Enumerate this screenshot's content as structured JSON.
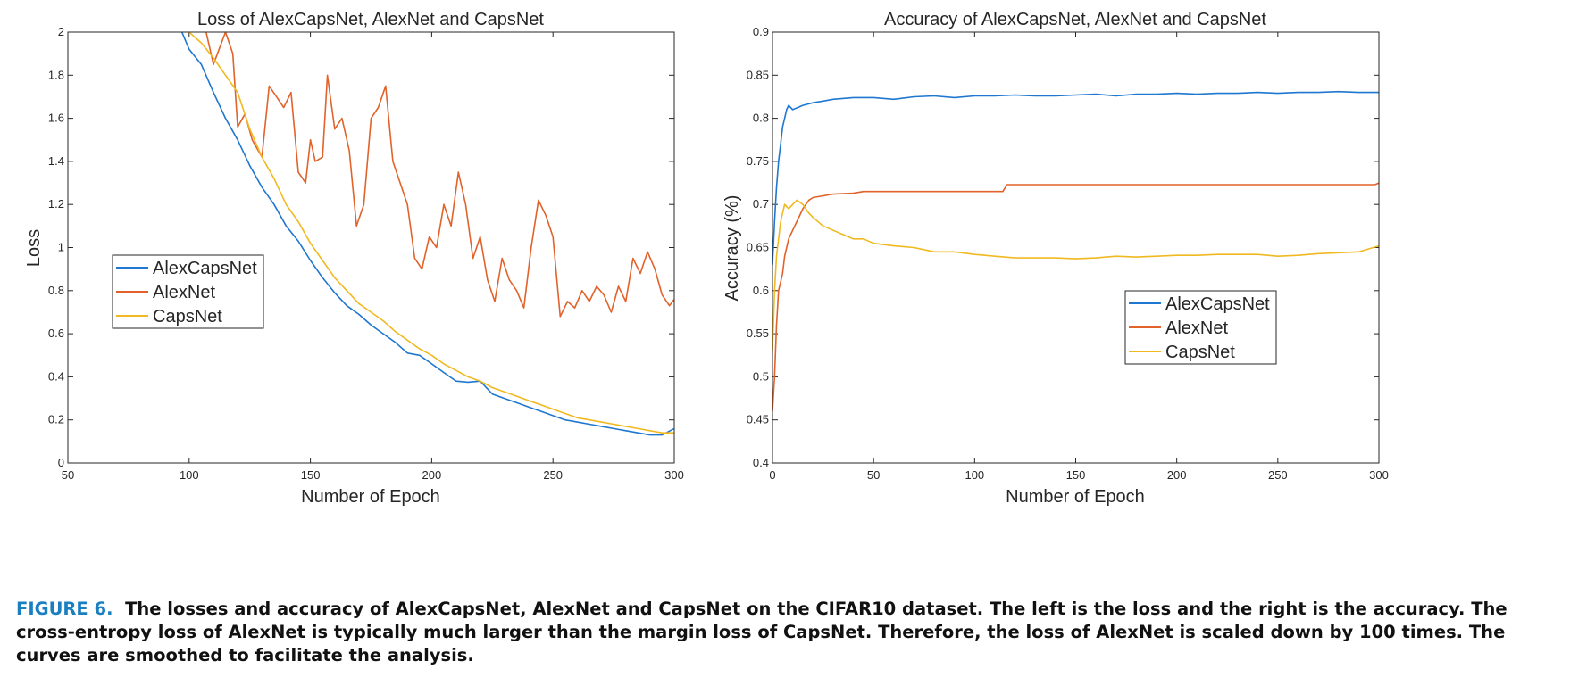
{
  "colors": {
    "alexcapsnet": "#1f77d0",
    "alexnet": "#e1622a",
    "capsnet": "#f0b921",
    "axis": "#262626",
    "caption_label": "#1a7fc1"
  },
  "chart_data": [
    {
      "type": "line",
      "title": "Loss of AlexCapsNet, AlexNet and CapsNet",
      "xlabel": "Number of Epoch",
      "ylabel": "Loss",
      "xlim": [
        50,
        300
      ],
      "ylim": [
        0,
        2
      ],
      "xticks": [
        "50",
        "100",
        "150",
        "200",
        "250",
        "300"
      ],
      "yticks": [
        "0",
        "0.2",
        "0.4",
        "0.6",
        "0.8",
        "1",
        "1.2",
        "1.4",
        "1.6",
        "1.8",
        "2"
      ],
      "grid": false,
      "legend_position": "center-left",
      "series": [
        {
          "name": "AlexCapsNet",
          "color": "#1f77d0",
          "x": [
            97,
            100,
            105,
            110,
            115,
            120,
            125,
            130,
            135,
            140,
            145,
            150,
            155,
            160,
            165,
            170,
            175,
            180,
            185,
            190,
            195,
            200,
            205,
            210,
            215,
            220,
            225,
            230,
            235,
            240,
            245,
            250,
            255,
            260,
            265,
            270,
            275,
            280,
            285,
            290,
            295,
            300
          ],
          "y": [
            2.0,
            1.92,
            1.85,
            1.72,
            1.6,
            1.5,
            1.38,
            1.28,
            1.2,
            1.1,
            1.03,
            0.94,
            0.86,
            0.79,
            0.73,
            0.69,
            0.64,
            0.6,
            0.56,
            0.51,
            0.5,
            0.46,
            0.42,
            0.38,
            0.375,
            0.38,
            0.32,
            0.3,
            0.28,
            0.26,
            0.24,
            0.22,
            0.2,
            0.19,
            0.18,
            0.17,
            0.16,
            0.15,
            0.14,
            0.13,
            0.13,
            0.16
          ]
        },
        {
          "name": "AlexNet",
          "color": "#e1622a",
          "x": [
            107,
            110,
            115,
            118,
            120,
            123,
            126,
            130,
            133,
            136,
            139,
            142,
            145,
            148,
            150,
            152,
            155,
            157,
            160,
            163,
            166,
            169,
            172,
            175,
            178,
            181,
            184,
            187,
            190,
            193,
            196,
            199,
            202,
            205,
            208,
            211,
            214,
            217,
            220,
            223,
            226,
            229,
            232,
            235,
            238,
            241,
            244,
            247,
            250,
            253,
            256,
            259,
            262,
            265,
            268,
            271,
            274,
            277,
            280,
            283,
            286,
            289,
            292,
            295,
            298,
            300
          ],
          "y": [
            2.0,
            1.85,
            2.0,
            1.9,
            1.56,
            1.62,
            1.5,
            1.42,
            1.75,
            1.7,
            1.65,
            1.72,
            1.35,
            1.3,
            1.5,
            1.4,
            1.42,
            1.8,
            1.55,
            1.6,
            1.45,
            1.1,
            1.2,
            1.6,
            1.65,
            1.75,
            1.4,
            1.3,
            1.2,
            0.95,
            0.9,
            1.05,
            1.0,
            1.2,
            1.1,
            1.35,
            1.2,
            0.95,
            1.05,
            0.85,
            0.75,
            0.95,
            0.85,
            0.8,
            0.72,
            1.0,
            1.22,
            1.15,
            1.05,
            0.68,
            0.75,
            0.72,
            0.8,
            0.75,
            0.82,
            0.78,
            0.7,
            0.82,
            0.75,
            0.95,
            0.88,
            0.98,
            0.9,
            0.78,
            0.73,
            0.76
          ]
        },
        {
          "name": "CapsNet",
          "color": "#f0b921",
          "x": [
            100,
            105,
            110,
            115,
            120,
            125,
            130,
            135,
            140,
            145,
            150,
            155,
            160,
            165,
            170,
            175,
            180,
            185,
            190,
            195,
            200,
            205,
            210,
            215,
            220,
            225,
            230,
            235,
            240,
            245,
            250,
            255,
            260,
            265,
            270,
            275,
            280,
            285,
            290,
            295,
            300
          ],
          "y": [
            2.0,
            1.95,
            1.88,
            1.8,
            1.72,
            1.55,
            1.42,
            1.32,
            1.2,
            1.12,
            1.02,
            0.94,
            0.86,
            0.8,
            0.74,
            0.7,
            0.66,
            0.61,
            0.57,
            0.53,
            0.5,
            0.46,
            0.43,
            0.4,
            0.38,
            0.35,
            0.33,
            0.31,
            0.29,
            0.27,
            0.25,
            0.23,
            0.21,
            0.2,
            0.19,
            0.18,
            0.17,
            0.16,
            0.15,
            0.14,
            0.14
          ]
        }
      ]
    },
    {
      "type": "line",
      "title": "Accuracy of AlexCapsNet, AlexNet and CapsNet",
      "xlabel": "Number of Epoch",
      "ylabel": "Accuracy (%)",
      "xlim": [
        0,
        300
      ],
      "ylim": [
        0.4,
        0.9
      ],
      "xticks": [
        "0",
        "50",
        "100",
        "150",
        "200",
        "250",
        "300"
      ],
      "yticks": [
        "0.4",
        "0.45",
        "0.5",
        "0.55",
        "0.6",
        "0.65",
        "0.7",
        "0.75",
        "0.8",
        "0.85",
        "0.9"
      ],
      "grid": false,
      "legend_position": "center-right",
      "series": [
        {
          "name": "AlexCapsNet",
          "color": "#1f77d0",
          "x": [
            0,
            1,
            2,
            3,
            4,
            5,
            6,
            7,
            8,
            10,
            12,
            15,
            20,
            25,
            30,
            40,
            50,
            60,
            70,
            80,
            90,
            100,
            110,
            120,
            130,
            140,
            150,
            160,
            170,
            180,
            190,
            200,
            210,
            220,
            230,
            240,
            250,
            260,
            270,
            280,
            290,
            300
          ],
          "y": [
            0.63,
            0.68,
            0.72,
            0.75,
            0.77,
            0.79,
            0.8,
            0.81,
            0.815,
            0.81,
            0.812,
            0.815,
            0.818,
            0.82,
            0.822,
            0.824,
            0.824,
            0.822,
            0.825,
            0.826,
            0.824,
            0.826,
            0.826,
            0.827,
            0.826,
            0.826,
            0.827,
            0.828,
            0.826,
            0.828,
            0.828,
            0.829,
            0.828,
            0.829,
            0.829,
            0.83,
            0.829,
            0.83,
            0.83,
            0.831,
            0.83,
            0.83
          ]
        },
        {
          "name": "AlexNet",
          "color": "#e1622a",
          "x": [
            0,
            1,
            2,
            3,
            4,
            5,
            6,
            8,
            10,
            12,
            15,
            18,
            20,
            25,
            30,
            40,
            45,
            60,
            80,
            100,
            114,
            116,
            150,
            200,
            250,
            298,
            300
          ],
          "y": [
            0.46,
            0.5,
            0.56,
            0.6,
            0.61,
            0.62,
            0.64,
            0.66,
            0.67,
            0.68,
            0.695,
            0.705,
            0.708,
            0.71,
            0.712,
            0.713,
            0.715,
            0.715,
            0.715,
            0.715,
            0.715,
            0.723,
            0.723,
            0.723,
            0.723,
            0.723,
            0.725
          ]
        },
        {
          "name": "CapsNet",
          "color": "#f0b921",
          "x": [
            0,
            1,
            2,
            3,
            4,
            5,
            6,
            8,
            10,
            12,
            15,
            18,
            20,
            25,
            30,
            35,
            40,
            45,
            50,
            60,
            70,
            80,
            90,
            100,
            110,
            120,
            130,
            140,
            150,
            160,
            170,
            180,
            190,
            200,
            210,
            220,
            230,
            240,
            250,
            260,
            270,
            280,
            290,
            300
          ],
          "y": [
            0.53,
            0.6,
            0.64,
            0.66,
            0.68,
            0.69,
            0.7,
            0.695,
            0.7,
            0.705,
            0.7,
            0.69,
            0.685,
            0.675,
            0.67,
            0.665,
            0.66,
            0.66,
            0.655,
            0.652,
            0.65,
            0.645,
            0.645,
            0.642,
            0.64,
            0.638,
            0.638,
            0.638,
            0.637,
            0.638,
            0.64,
            0.639,
            0.64,
            0.641,
            0.641,
            0.642,
            0.642,
            0.642,
            0.64,
            0.641,
            0.643,
            0.644,
            0.645,
            0.652
          ]
        }
      ]
    }
  ],
  "caption": {
    "label": "FIGURE 6.",
    "text": "The losses and accuracy of AlexCapsNet, AlexNet and CapsNet on the CIFAR10 dataset. The left is the loss and the right is the accuracy. The cross-entropy loss of AlexNet is typically much larger than the margin loss of CapsNet. Therefore, the loss of AlexNet is scaled down by 100 times. The curves are smoothed to facilitate the analysis."
  }
}
